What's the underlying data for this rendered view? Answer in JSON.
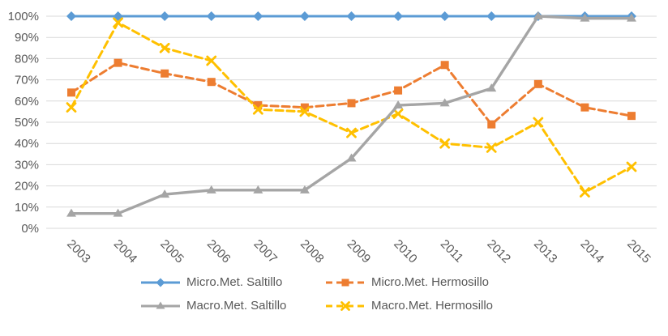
{
  "chart_data": {
    "type": "line",
    "title": "",
    "xlabel": "",
    "ylabel": "",
    "categories": [
      "2003",
      "2004",
      "2005",
      "2006",
      "2007",
      "2008",
      "2009",
      "2010",
      "2011",
      "2012",
      "2013",
      "2014",
      "2015"
    ],
    "series": [
      {
        "name": "Micro.Met. Saltillo",
        "color": "#5B9BD5",
        "marker": "diamond",
        "line_style": "solid",
        "values": [
          100,
          100,
          100,
          100,
          100,
          100,
          100,
          100,
          100,
          100,
          100,
          100,
          100
        ]
      },
      {
        "name": "Micro.Met. Hermosillo",
        "color": "#ED7D31",
        "marker": "square",
        "line_style": "dashed",
        "values": [
          64,
          78,
          73,
          69,
          58,
          57,
          59,
          65,
          77,
          49,
          68,
          57,
          53
        ]
      },
      {
        "name": "Macro.Met. Saltillo",
        "color": "#A5A5A5",
        "marker": "triangle",
        "line_style": "solid",
        "values": [
          7,
          7,
          16,
          18,
          18,
          18,
          33,
          58,
          59,
          66,
          100,
          99,
          99
        ]
      },
      {
        "name": "Macro.Met. Hermosillo",
        "color": "#FFC000",
        "marker": "x",
        "line_style": "dashed",
        "values": [
          57,
          97,
          85,
          79,
          56,
          55,
          45,
          54,
          40,
          38,
          50,
          17,
          29
        ]
      }
    ],
    "ylim": [
      0,
      100
    ],
    "y_ticks": [
      "0%",
      "10%",
      "20%",
      "30%",
      "40%",
      "50%",
      "60%",
      "70%",
      "80%",
      "90%",
      "100%"
    ],
    "grid": true,
    "legend_position": "bottom",
    "axis_text_color": "#595959",
    "gridline_color": "#D9D9D9"
  }
}
